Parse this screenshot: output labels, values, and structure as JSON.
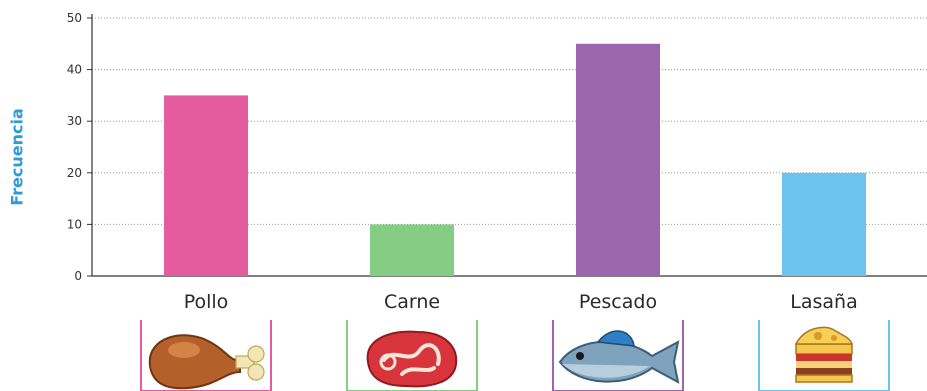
{
  "chart_data": {
    "type": "bar",
    "title": "",
    "xlabel": "",
    "ylabel": "Frecuencia",
    "ylim": [
      0,
      50
    ],
    "yticks": [
      0,
      10,
      20,
      30,
      40,
      50
    ],
    "grid": true,
    "categories": [
      "Pollo",
      "Carne",
      "Pescado",
      "Lasaña"
    ],
    "values": [
      35,
      10,
      45,
      20
    ],
    "colors": [
      "#e45c9e",
      "#85cc85",
      "#9c66ad",
      "#6cc3ee"
    ],
    "icons": [
      "chicken-leg-icon",
      "steak-icon",
      "fish-icon",
      "lasagna-icon"
    ],
    "icon_frame_colors": [
      "#e45c9e",
      "#85cc85",
      "#9c66ad",
      "#6cc3ee"
    ]
  }
}
